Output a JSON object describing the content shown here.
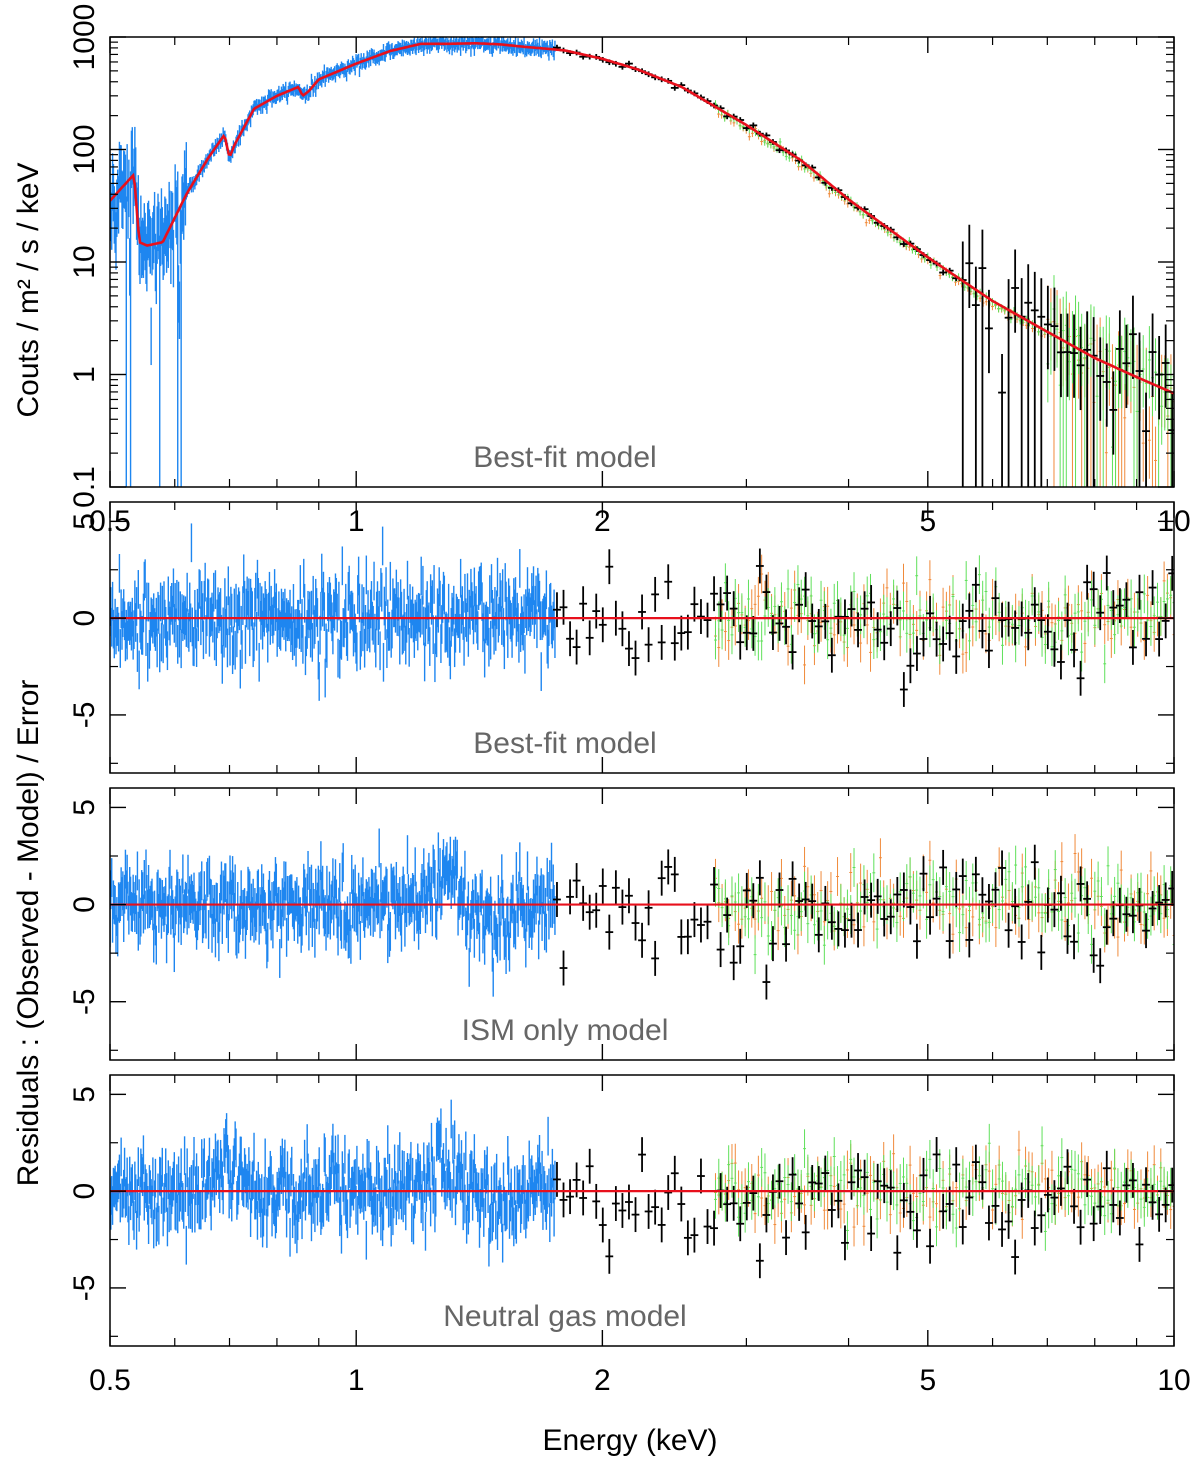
{
  "figure": {
    "xlabel": "Energy (keV)",
    "ylabel_top": "Couts / m² / s / keV",
    "ylabel_residuals": "Residuals : (Observed - Model) / Error"
  },
  "colors": {
    "model": "#e8101c",
    "blue_data": "#1e86f0",
    "black_data": "#000000",
    "orange_data": "#f08a3a",
    "green_data": "#5fe05a"
  },
  "chart_data": [
    {
      "type": "scatter",
      "panel_label": "Best-fit model",
      "xscale": "log",
      "yscale": "log",
      "xlim": [
        0.5,
        10
      ],
      "ylim": [
        0.1,
        1000
      ],
      "x_ticks": [
        {
          "value": 0.5,
          "label": "0.5"
        },
        {
          "value": 1,
          "label": "1"
        },
        {
          "value": 2,
          "label": "2"
        },
        {
          "value": 5,
          "label": "5"
        },
        {
          "value": 10,
          "label": "10"
        }
      ],
      "y_ticks": [
        {
          "value": 0.1,
          "label": "0.1"
        },
        {
          "value": 1,
          "label": "1"
        },
        {
          "value": 10,
          "label": "10"
        },
        {
          "value": 100,
          "label": "100"
        },
        {
          "value": 1000,
          "label": "1000"
        }
      ],
      "model_curve": {
        "x": [
          0.5,
          0.52,
          0.535,
          0.543,
          0.555,
          0.58,
          0.62,
          0.66,
          0.69,
          0.7,
          0.71,
          0.75,
          0.8,
          0.85,
          0.86,
          0.875,
          0.9,
          1.0,
          1.1,
          1.2,
          1.3,
          1.4,
          1.5,
          1.6,
          1.7,
          1.8,
          2.0,
          2.2,
          2.5,
          3.0,
          3.5,
          4.0,
          5.0,
          6.0,
          7.0,
          8.0,
          9.0,
          10.0
        ],
        "y": [
          35,
          48,
          60,
          15,
          14,
          15,
          40,
          85,
          135,
          85,
          110,
          230,
          300,
          360,
          300,
          330,
          420,
          580,
          750,
          870,
          870,
          880,
          860,
          820,
          790,
          760,
          640,
          520,
          360,
          165,
          80,
          36,
          11,
          4.5,
          2.4,
          1.4,
          0.95,
          0.68
        ]
      },
      "series": [
        {
          "color": "blue",
          "x_range": [
            0.5,
            1.75
          ],
          "y_points": [
            [
              0.5,
              35
            ],
            [
              0.55,
              15
            ],
            [
              0.6,
              25
            ],
            [
              0.7,
              110
            ],
            [
              0.8,
              300
            ],
            [
              0.9,
              400
            ],
            [
              1.0,
              560
            ],
            [
              1.2,
              860
            ],
            [
              1.4,
              880
            ],
            [
              1.6,
              830
            ],
            [
              1.75,
              780
            ]
          ]
        },
        {
          "color": "black",
          "x_range": [
            1.75,
            10
          ],
          "y_points": [
            [
              1.8,
              760
            ],
            [
              2.0,
              640
            ],
            [
              2.5,
              360
            ],
            [
              3.0,
              165
            ],
            [
              4.0,
              36
            ],
            [
              5.0,
              11
            ],
            [
              5.7,
              4
            ],
            [
              6.0,
              2
            ],
            [
              7.0,
              2
            ],
            [
              8.0,
              1.4
            ],
            [
              9.0,
              1
            ],
            [
              10.0,
              0.7
            ]
          ]
        },
        {
          "color": "orange",
          "x_range": [
            2.75,
            10
          ],
          "y_points": [
            [
              3.0,
              150
            ],
            [
              4.0,
              33
            ],
            [
              5.0,
              10
            ],
            [
              6.0,
              4
            ],
            [
              8.0,
              1.3
            ],
            [
              10.0,
              0.65
            ]
          ]
        },
        {
          "color": "green",
          "x_range": [
            2.75,
            10
          ],
          "y_points": [
            [
              3.0,
              155
            ],
            [
              4.0,
              34
            ],
            [
              5.0,
              10.5
            ],
            [
              6.0,
              4.2
            ],
            [
              8.0,
              1.35
            ],
            [
              10.0,
              0.68
            ]
          ]
        }
      ]
    },
    {
      "type": "scatter",
      "panel_label": "Best-fit model",
      "xscale": "log",
      "xlim": [
        0.5,
        10
      ],
      "ylim": [
        -8,
        6
      ],
      "x_ticks": [
        {
          "value": 0.5,
          "label": ""
        },
        {
          "value": 1,
          "label": ""
        },
        {
          "value": 2,
          "label": ""
        },
        {
          "value": 5,
          "label": ""
        },
        {
          "value": 10,
          "label": ""
        }
      ],
      "y_ticks": [
        {
          "value": 5,
          "label": "5"
        },
        {
          "value": 0,
          "label": "0"
        },
        {
          "value": -5,
          "label": "-5"
        }
      ],
      "zero_line": true,
      "residual_extrema": {
        "min": -4.6,
        "max": 4.0
      }
    },
    {
      "type": "scatter",
      "panel_label": "ISM only model",
      "xscale": "log",
      "xlim": [
        0.5,
        10
      ],
      "ylim": [
        -8,
        6
      ],
      "x_ticks": [
        {
          "value": 0.5,
          "label": ""
        },
        {
          "value": 1,
          "label": ""
        },
        {
          "value": 2,
          "label": ""
        },
        {
          "value": 5,
          "label": ""
        },
        {
          "value": 10,
          "label": ""
        }
      ],
      "y_ticks": [
        {
          "value": 5,
          "label": "5"
        },
        {
          "value": 0,
          "label": "0"
        },
        {
          "value": -5,
          "label": "-5"
        }
      ],
      "zero_line": true,
      "residual_extrema": {
        "min": -5.5,
        "max": 4.2
      }
    },
    {
      "type": "scatter",
      "panel_label": "Neutral gas model",
      "xscale": "log",
      "xlim": [
        0.5,
        10
      ],
      "ylim": [
        -8,
        6
      ],
      "x_ticks": [
        {
          "value": 0.5,
          "label": "0.5"
        },
        {
          "value": 1,
          "label": "1"
        },
        {
          "value": 2,
          "label": "2"
        },
        {
          "value": 5,
          "label": "5"
        },
        {
          "value": 10,
          "label": "10"
        }
      ],
      "y_ticks": [
        {
          "value": 5,
          "label": "5"
        },
        {
          "value": 0,
          "label": "0"
        },
        {
          "value": -5,
          "label": "-5"
        }
      ],
      "zero_line": true,
      "residual_extrema": {
        "min": -5.8,
        "max": 4.6
      }
    }
  ]
}
